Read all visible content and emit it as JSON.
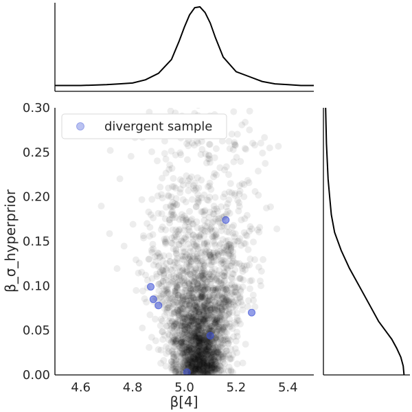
{
  "chart_data": {
    "type": "scatter",
    "title": "",
    "xlabel": "β[4]",
    "ylabel": "β_σ_hyperprior",
    "xlim": [
      4.5,
      5.5
    ],
    "ylim": [
      0.0,
      0.3
    ],
    "x_ticks": [
      4.6,
      4.8,
      5.0,
      5.2,
      5.4
    ],
    "x_tick_labels": [
      "4.6",
      "4.8",
      "5.0",
      "5.2",
      "5.4"
    ],
    "y_ticks": [
      0.0,
      0.05,
      0.1,
      0.15,
      0.2,
      0.25,
      0.3
    ],
    "y_tick_labels": [
      "0.00",
      "0.05",
      "0.10",
      "0.15",
      "0.20",
      "0.25",
      "0.30"
    ],
    "grid": false,
    "legend": {
      "placement": "top-left",
      "entries": [
        "divergent sample"
      ]
    },
    "colors": {
      "samples": "#000000",
      "divergent": "#3a4fd6",
      "kde": "#000000"
    },
    "samples": {
      "description_shape": "cloud of posterior draws, dense near bottom, centered near x=5.05",
      "count": 2500,
      "x_center": 5.06,
      "x_spread_at_bottom": 0.045,
      "x_spread_at_top": 0.17,
      "y_median": 0.07
    },
    "divergent": {
      "name": "divergent sample",
      "x": [
        4.87,
        4.88,
        4.9,
        5.16,
        5.26,
        5.1,
        5.01
      ],
      "y": [
        0.099,
        0.085,
        0.078,
        0.174,
        0.07,
        0.044,
        0.003
      ]
    },
    "marginal_x": {
      "x": [
        4.5,
        4.6,
        4.7,
        4.75,
        4.8,
        4.85,
        4.9,
        4.95,
        4.98,
        5.0,
        5.02,
        5.04,
        5.06,
        5.08,
        5.1,
        5.12,
        5.15,
        5.2,
        5.25,
        5.3,
        5.35,
        5.4,
        5.45,
        5.5
      ],
      "density": [
        0.03,
        0.03,
        0.04,
        0.05,
        0.06,
        0.1,
        0.18,
        0.35,
        0.58,
        0.75,
        0.9,
        0.99,
        1.0,
        0.93,
        0.8,
        0.62,
        0.38,
        0.2,
        0.14,
        0.08,
        0.05,
        0.04,
        0.03,
        0.03
      ]
    },
    "marginal_y": {
      "y": [
        0.0,
        0.01,
        0.02,
        0.03,
        0.04,
        0.05,
        0.06,
        0.08,
        0.1,
        0.12,
        0.14,
        0.16,
        0.18,
        0.2,
        0.22,
        0.24,
        0.26,
        0.28,
        0.3
      ],
      "density": [
        0.97,
        0.96,
        0.93,
        0.88,
        0.82,
        0.74,
        0.66,
        0.54,
        0.42,
        0.3,
        0.2,
        0.12,
        0.08,
        0.06,
        0.04,
        0.03,
        0.02,
        0.015,
        0.01
      ]
    }
  }
}
